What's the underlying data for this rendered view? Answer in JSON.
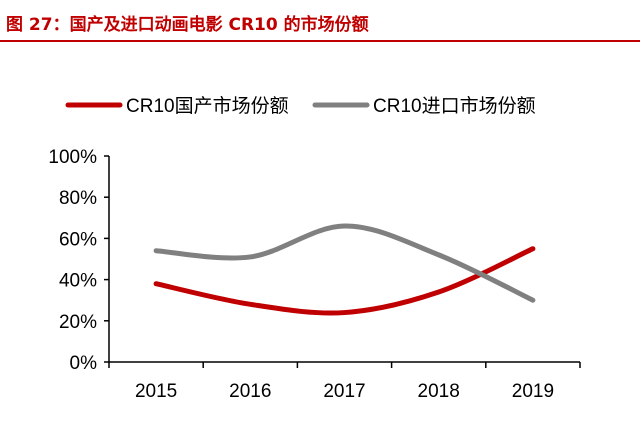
{
  "figure_title": "图 27：国产及进口动画电影 CR10 的市场份额",
  "chart_data": {
    "type": "line",
    "smooth": true,
    "categories": [
      "2015",
      "2016",
      "2017",
      "2018",
      "2019"
    ],
    "series": [
      {
        "name": "CR10国产市场份额",
        "values": [
          38,
          28,
          24,
          34,
          55
        ],
        "color": "#c00000"
      },
      {
        "name": "CR10进口市场份额",
        "values": [
          54,
          51,
          66,
          52,
          30
        ],
        "color": "#808080"
      }
    ],
    "ylim": [
      0,
      100
    ],
    "yticks": [
      "0%",
      "20%",
      "40%",
      "60%",
      "80%",
      "100%"
    ],
    "grid": false,
    "legend_position": "top"
  }
}
